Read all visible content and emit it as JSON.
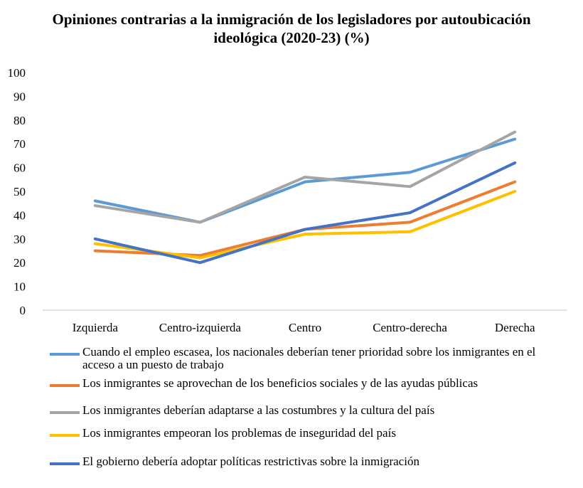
{
  "chart_data": {
    "type": "line",
    "title": "Opiniones contrarias a la inmigración de los legisladores por autoubicación ideológica (2020-23) (%)",
    "categories": [
      "Izquierda",
      "Centro-izquierda",
      "Centro",
      "Centro-derecha",
      "Derecha"
    ],
    "ylim": [
      0,
      100
    ],
    "yticks": [
      "0",
      "10",
      "20",
      "30",
      "40",
      "50",
      "60",
      "70",
      "80",
      "90",
      "100"
    ],
    "grid": false,
    "legend_position": "bottom",
    "series": [
      {
        "name": "Cuando el empleo escasea, los nacionales deberían tener prioridad sobre los inmigrantes en el acceso a un puesto de trabajo",
        "color": "#5B9BD5",
        "values": [
          46,
          37,
          54,
          58,
          72
        ]
      },
      {
        "name": "Los inmigrantes se aprovechan de los beneficios sociales y de las ayudas públicas",
        "color": "#ED7D31",
        "values": [
          25,
          23,
          34,
          37,
          54
        ]
      },
      {
        "name": "Los inmigrantes deberían adaptarse a las costumbres y la cultura del país",
        "color": "#A5A5A5",
        "values": [
          44,
          37,
          56,
          52,
          75
        ]
      },
      {
        "name": "Los inmigrantes empeoran los problemas de inseguridad del país",
        "color": "#FFC000",
        "values": [
          28,
          22,
          32,
          33,
          50
        ]
      },
      {
        "name": "El gobierno debería adoptar políticas restrictivas sobre la inmigración",
        "color": "#4472C4",
        "values": [
          30,
          20,
          34,
          41,
          62
        ]
      }
    ]
  }
}
